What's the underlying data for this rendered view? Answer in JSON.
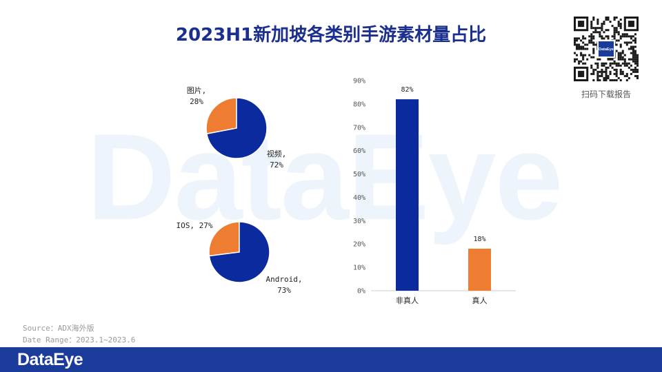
{
  "title": "2023H1新加坡各类别手游素材量占比",
  "watermark": "DataEye",
  "qr": {
    "logo_text": "DataEye",
    "caption": "扫码下载报告"
  },
  "source": {
    "line1": "Source：ADX海外版",
    "line2": "Date Range：2023.1~2023.6"
  },
  "footer": {
    "brand": "DataEye"
  },
  "colors": {
    "blue": "#0a2a9e",
    "orange": "#ee7d31",
    "title": "#1b2f8f",
    "footer": "#1a3b9a"
  },
  "chart_data": [
    {
      "type": "pie",
      "slices": [
        {
          "label": "图片",
          "value": 28,
          "label_text": [
            "图片,",
            "28%"
          ]
        },
        {
          "label": "视频",
          "value": 72,
          "label_text": [
            "视频,",
            "72%"
          ]
        }
      ]
    },
    {
      "type": "pie",
      "slices": [
        {
          "label": "IOS",
          "value": 27,
          "label_text": [
            "IOS, 27%"
          ]
        },
        {
          "label": "Android",
          "value": 73,
          "label_text": [
            "Android,",
            "73%"
          ]
        }
      ]
    },
    {
      "type": "bar",
      "categories": [
        "非真人",
        "真人"
      ],
      "values": [
        82,
        18
      ],
      "value_labels": [
        "82%",
        "18%"
      ],
      "yticks": [
        "0%",
        "10%",
        "20%",
        "30%",
        "40%",
        "50%",
        "60%",
        "70%",
        "80%",
        "90%"
      ],
      "ylim": [
        0,
        90
      ],
      "grid": false
    }
  ]
}
